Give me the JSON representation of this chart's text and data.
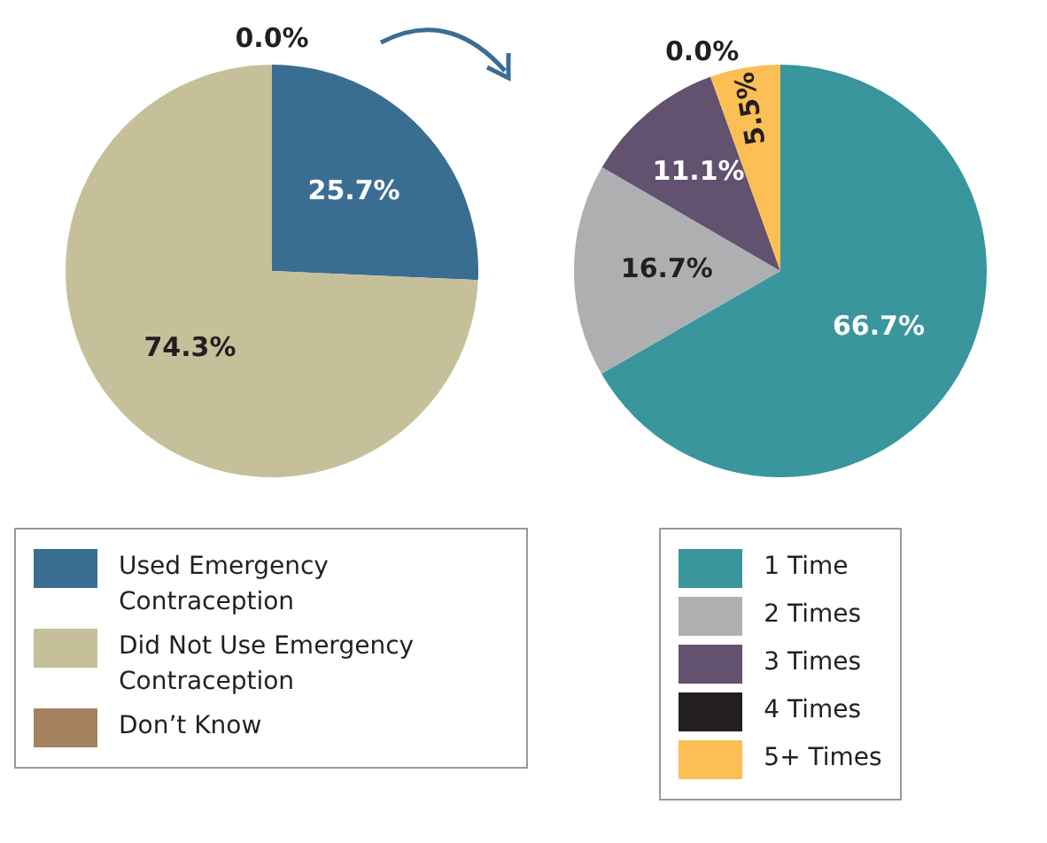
{
  "chart_data": [
    {
      "type": "pie",
      "categories": [
        "Used Emergency Contraception",
        "Did Not Use Emergency Contraception",
        "Don’t Know"
      ],
      "values": [
        25.7,
        74.3,
        0.0
      ],
      "colors": [
        "#3a6d92",
        "#c5c09a",
        "#a4825f"
      ],
      "value_labels": [
        "25.7%",
        "74.3%",
        "0.0%"
      ],
      "legend": "bottom"
    },
    {
      "type": "pie",
      "categories": [
        "1 Time",
        "2 Times",
        "3 Times",
        "4 Times",
        "5+ Times"
      ],
      "values": [
        66.7,
        16.7,
        11.1,
        0.0,
        5.5
      ],
      "colors": [
        "#38969c",
        "#aeafb1",
        "#62516f",
        "#231f20",
        "#fbbf55"
      ],
      "value_labels": [
        "66.7%",
        "16.7%",
        "11.1%",
        "0.0%",
        "5.5%"
      ],
      "legend": "bottom"
    }
  ]
}
